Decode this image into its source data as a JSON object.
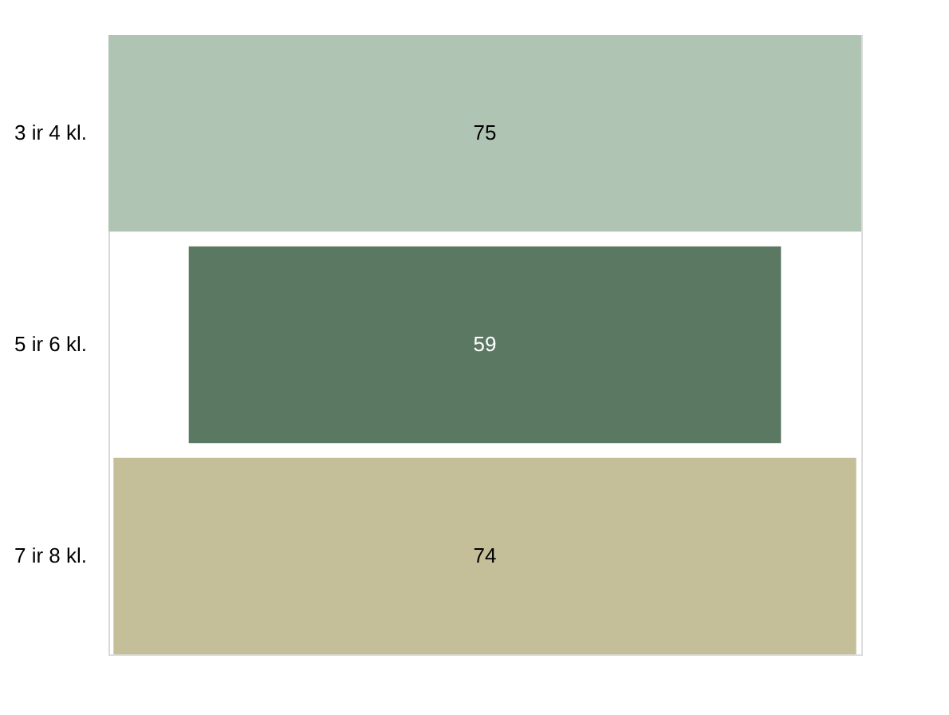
{
  "chart_data": {
    "type": "other",
    "categories": [
      "3 ir 4 kl.",
      "5 ir 6 kl.",
      "7 ir 8 kl."
    ],
    "values": [
      75,
      59,
      74
    ],
    "colors": [
      "#b0c4b4",
      "#5b7862",
      "#c5bf99"
    ],
    "data_labels": true
  }
}
